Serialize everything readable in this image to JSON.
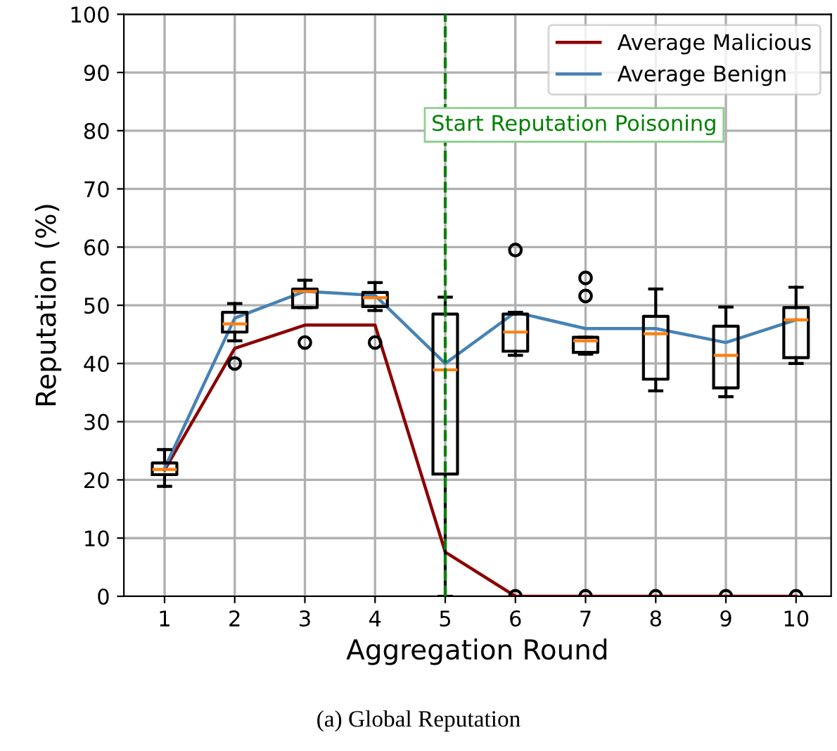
{
  "chart_data": {
    "type": "box",
    "xlabel": "Aggregation Round",
    "ylabel": "Reputation (%)",
    "categories": [
      "1",
      "2",
      "3",
      "4",
      "5",
      "6",
      "7",
      "8",
      "9",
      "10"
    ],
    "ylim": [
      0,
      100
    ],
    "yticks": [
      0,
      10,
      20,
      30,
      40,
      50,
      60,
      70,
      80,
      90,
      100
    ],
    "grid": true,
    "legend": "top right",
    "boxes": [
      {
        "low": 18.9,
        "q1": 20.9,
        "median": 21.8,
        "q3": 22.9,
        "high": 25.2
      },
      {
        "low": 43.9,
        "q1": 45.4,
        "median": 46.8,
        "q3": 48.8,
        "high": 50.3,
        "outliers": [
          40.0
        ]
      },
      {
        "low": 49.6,
        "q1": 49.6,
        "median": 52.4,
        "q3": 52.8,
        "high": 54.3,
        "outliers": [
          43.6
        ]
      },
      {
        "low": 49.1,
        "q1": 49.8,
        "median": 51.3,
        "q3": 52.2,
        "high": 53.9,
        "outliers": [
          43.6
        ]
      },
      {
        "low": 0,
        "q1": 21.0,
        "median": 38.9,
        "q3": 48.5,
        "high": 51.4
      },
      {
        "low": 41.4,
        "q1": 42.1,
        "median": 45.4,
        "q3": 48.5,
        "high": 48.8,
        "outliers": [
          59.5,
          0
        ]
      },
      {
        "low": 41.6,
        "q1": 41.9,
        "median": 43.9,
        "q3": 44.5,
        "high": 44.5,
        "outliers": [
          54.7,
          51.6,
          0
        ]
      },
      {
        "low": 35.3,
        "q1": 37.3,
        "median": 45.1,
        "q3": 48.1,
        "high": 52.8,
        "outliers": [
          0
        ]
      },
      {
        "low": 34.3,
        "q1": 35.8,
        "median": 41.4,
        "q3": 46.4,
        "high": 49.7,
        "outliers": [
          0
        ]
      },
      {
        "low": 40.0,
        "q1": 41.0,
        "median": 47.5,
        "q3": 49.6,
        "high": 53.1,
        "outliers": [
          0
        ]
      }
    ],
    "series": [
      {
        "type": "line",
        "name": "Average Malicious",
        "color": "#8b0000",
        "values": [
          21.7,
          42.6,
          46.6,
          46.6,
          7.6,
          0,
          0,
          0,
          0,
          0
        ]
      },
      {
        "type": "line",
        "name": "Average Benign",
        "color": "#4682b4",
        "values": [
          22.0,
          47.8,
          52.4,
          51.7,
          40.0,
          48.8,
          46.0,
          46.0,
          43.6,
          47.5
        ]
      }
    ],
    "ref_lines": [
      {
        "axis": "x",
        "value": "5",
        "label": "Start Reputation Poisoning",
        "color": "#008000",
        "line_style": "dashed"
      }
    ],
    "annotations": [
      "(a) Global Reputation"
    ]
  }
}
